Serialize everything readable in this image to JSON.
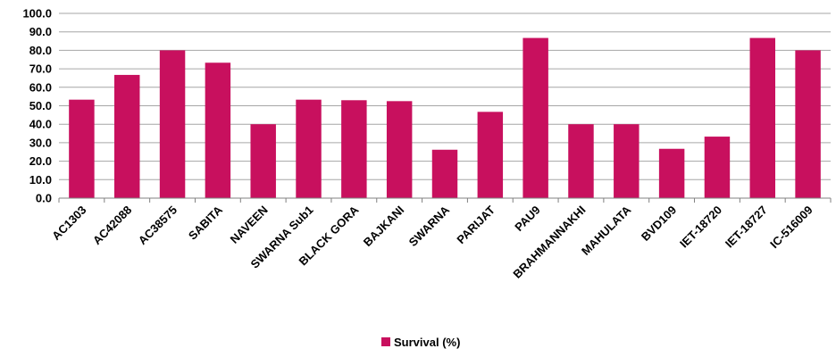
{
  "chart_data": {
    "type": "bar",
    "categories": [
      "AC1303",
      "AC42088",
      "AC38575",
      "SABITA",
      "NAVEEN",
      "SWARNA Sub1",
      "BLACK GORA",
      "BAJKANI",
      "SWARNA",
      "PARIJAT",
      "PAU9",
      "BRAHMANNAKHI",
      "MAHULATA",
      "BVD109",
      "IET-18720",
      "IET-18727",
      "IC-516009"
    ],
    "series": [
      {
        "name": "Survival (%)",
        "values": [
          53.3,
          66.7,
          80.0,
          73.3,
          40.0,
          53.3,
          53.0,
          52.5,
          26.2,
          46.7,
          86.7,
          40.0,
          40.0,
          26.7,
          33.3,
          86.7,
          80.0
        ]
      }
    ],
    "ylim": [
      0,
      100
    ],
    "yticks": [
      "0.0",
      "10.0",
      "20.0",
      "30.0",
      "40.0",
      "50.0",
      "60.0",
      "70.0",
      "80.0",
      "90.0",
      "100.0"
    ],
    "grid": true,
    "legend_position": "bottom",
    "colors": {
      "bar": "#C8105E",
      "grid": "#A6A6A6",
      "axis": "#808080"
    }
  }
}
